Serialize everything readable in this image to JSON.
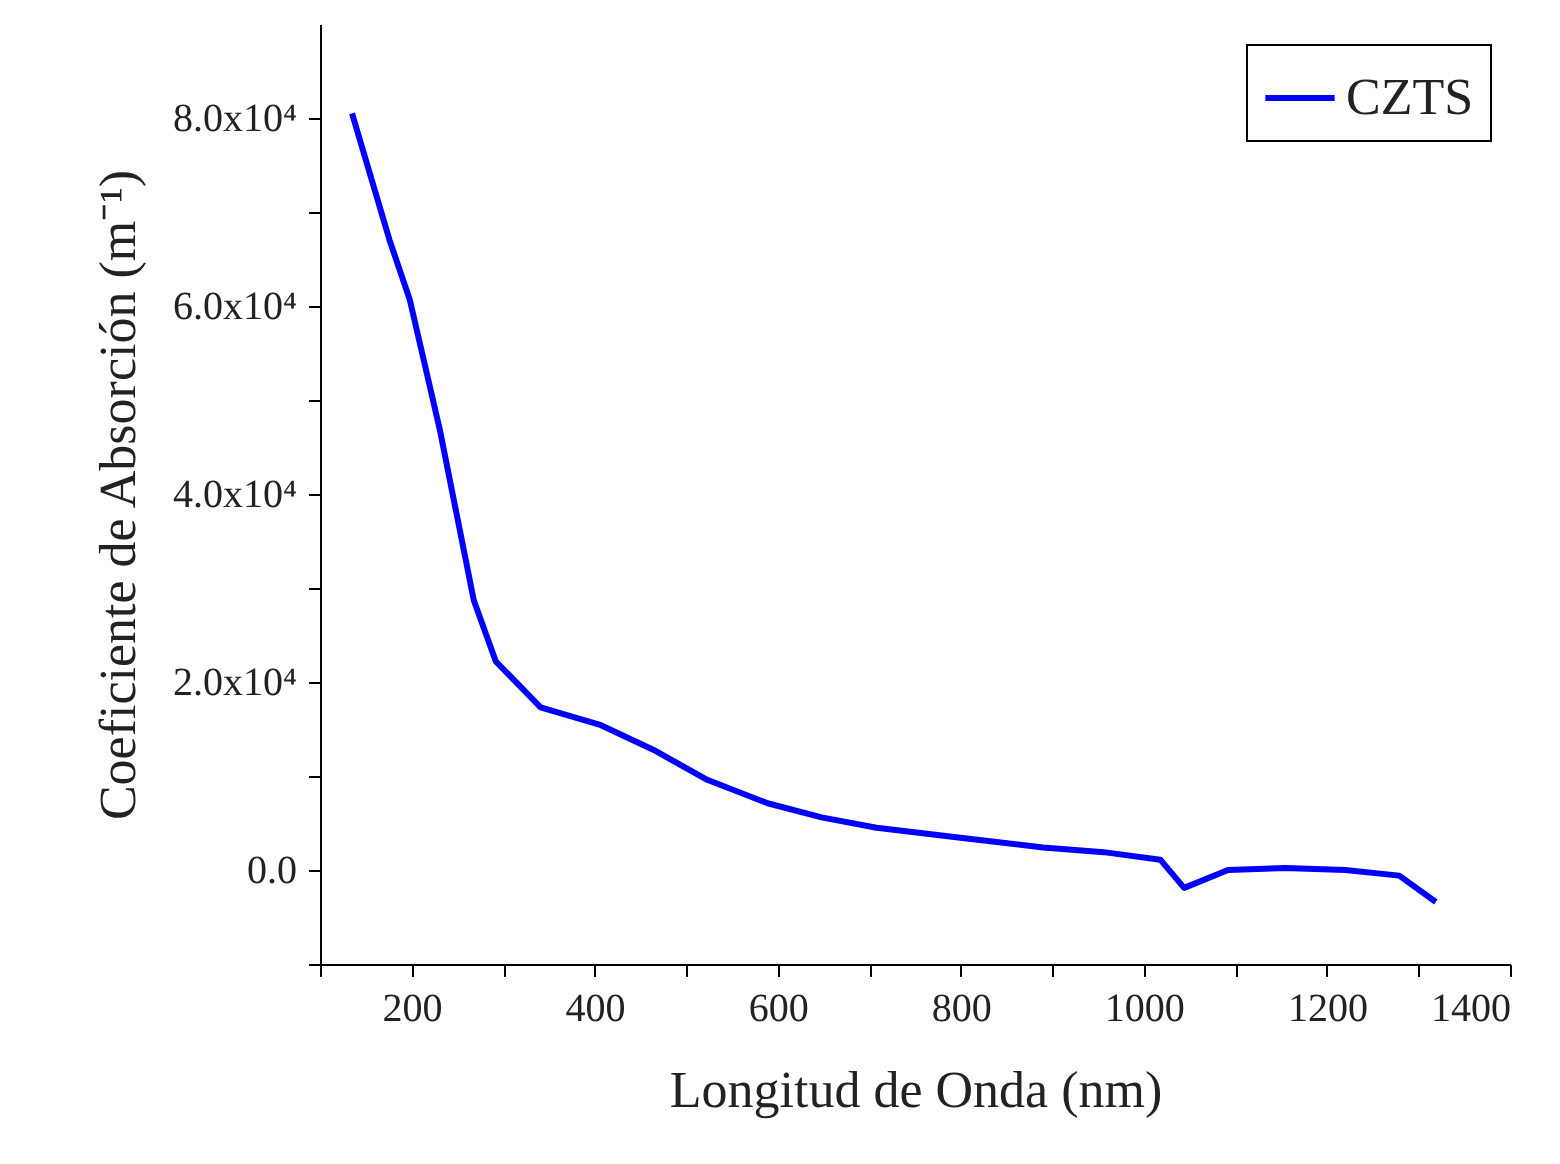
{
  "chart_data": {
    "type": "line",
    "xlabel": "Longitud de Onda (nm)",
    "ylabel": "Coeficiente de Absorción (m⁻¹)",
    "x": [
      135,
      176,
      198,
      231,
      268,
      292,
      341,
      407,
      464,
      523,
      589,
      648,
      708,
      802,
      890,
      956,
      1018,
      1044,
      1092,
      1154,
      1220,
      1279,
      1319
    ],
    "series": [
      {
        "name": "CZTS",
        "color": "#0000ff",
        "values": [
          80500,
          67000,
          60700,
          46800,
          28700,
          22200,
          17300,
          15400,
          12800,
          9600,
          7100,
          5600,
          4500,
          3400,
          2400,
          1900,
          1100,
          -1900,
          0,
          200,
          0,
          -600,
          -3400
        ]
      }
    ],
    "xlim": [
      100,
      1400
    ],
    "xticks": [
      {
        "value": 100,
        "label": null
      },
      200,
      {
        "value": 300,
        "label": null
      },
      400,
      {
        "value": 500,
        "label": null
      },
      600,
      {
        "value": 700,
        "label": null
      },
      800,
      {
        "value": 900,
        "label": null
      },
      1000,
      {
        "value": 1100,
        "label": null
      },
      1200,
      {
        "value": 1300,
        "label": null
      },
      1400
    ],
    "ylim": [
      -10000,
      90000
    ],
    "yticks": [
      {
        "value": -10000,
        "label": null
      },
      {
        "value": 0,
        "label": "0.0"
      },
      {
        "value": 10000,
        "label": null
      },
      {
        "value": 20000,
        "label": "2.0x10⁴"
      },
      {
        "value": 30000,
        "label": null
      },
      {
        "value": 40000,
        "label": "4.0x10⁴"
      },
      {
        "value": 50000,
        "label": null
      },
      {
        "value": 60000,
        "label": "6.0x10⁴"
      },
      {
        "value": 70000,
        "label": null
      },
      {
        "value": 80000,
        "label": "8.0x10⁴"
      }
    ],
    "grid": false,
    "legend": "top right",
    "marker": "none",
    "line_style": "solid"
  }
}
